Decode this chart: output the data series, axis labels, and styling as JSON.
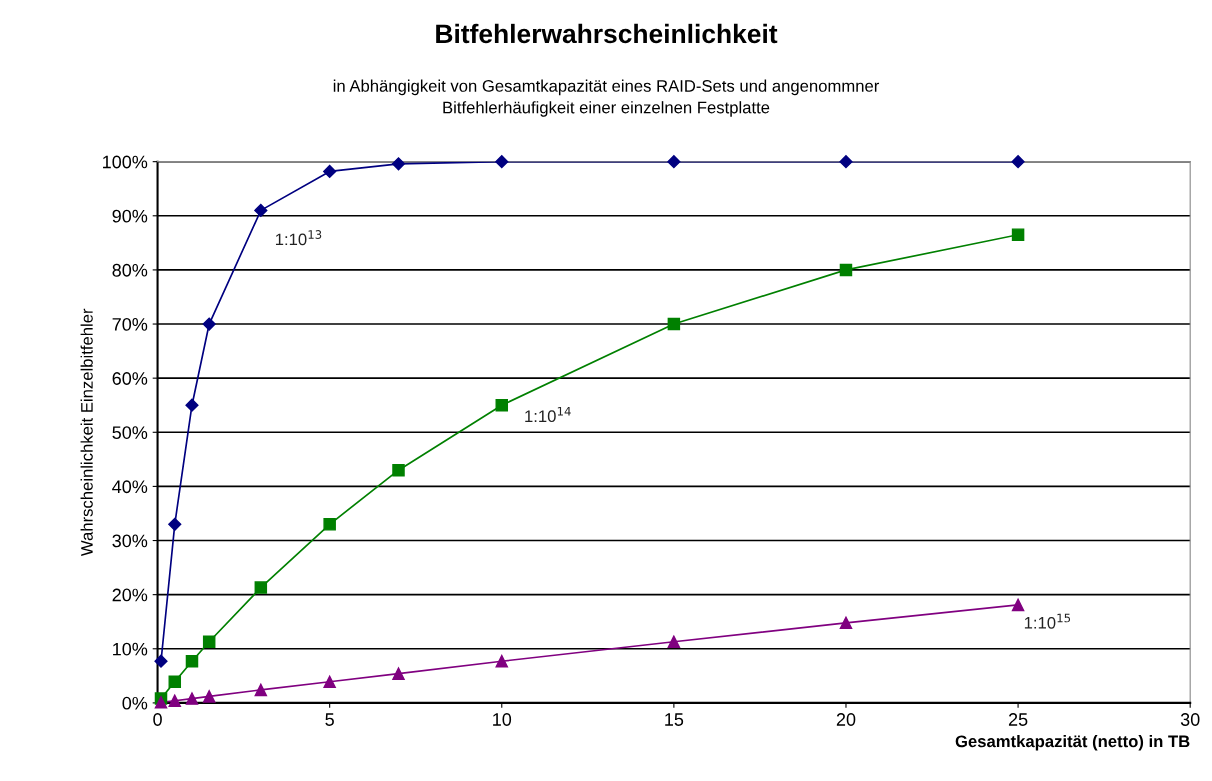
{
  "chart_data": {
    "type": "line",
    "title": "Bitfehlerwahrscheinlichkeit",
    "subtitle": "in Abhängigkeit von Gesamtkapazität eines RAID-Sets und angenommner\nBitfehlerhäufigkeit einer einzelnen Festplatte",
    "xlabel": "Gesamtkapazität (netto) in TB",
    "ylabel": "Wahrscheinlichkeit Einzelbitfehler",
    "x": [
      0.1,
      0.5,
      1,
      1.5,
      3,
      5,
      7,
      10,
      15,
      20,
      25
    ],
    "series": [
      {
        "name": "1:10$^{13}$",
        "color": "#000080",
        "marker": "diamond",
        "values": [
          7.7,
          33,
          55,
          70,
          91,
          98.2,
          99.6,
          100,
          100,
          100,
          100
        ]
      },
      {
        "name": "1:10$^{14}$",
        "color": "#008000",
        "marker": "square",
        "values": [
          0.8,
          3.9,
          7.7,
          11.3,
          21.3,
          33,
          43,
          55,
          70,
          80,
          86.5
        ]
      },
      {
        "name": "1:10$^{15}$",
        "color": "#800080",
        "marker": "triangle",
        "values": [
          0.1,
          0.4,
          0.8,
          1.2,
          2.4,
          3.9,
          5.4,
          7.7,
          11.3,
          14.8,
          18.1
        ]
      }
    ],
    "xlim": [
      0,
      30
    ],
    "xticks": [
      0,
      5,
      10,
      15,
      20,
      25,
      30
    ],
    "ylim": [
      0,
      100
    ],
    "yticks": [
      {
        "value": 0,
        "label": "0%"
      },
      {
        "value": 10,
        "label": "10%"
      },
      {
        "value": 20,
        "label": "20%"
      },
      {
        "value": 30,
        "label": "30%"
      },
      {
        "value": 40,
        "label": "40%"
      },
      {
        "value": 50,
        "label": "50%"
      },
      {
        "value": 60,
        "label": "60%"
      },
      {
        "value": 70,
        "label": "70%"
      },
      {
        "value": 80,
        "label": "80%"
      },
      {
        "value": 90,
        "label": "90%"
      },
      {
        "value": 100,
        "label": "100%"
      }
    ],
    "grid": "y",
    "legend": false
  }
}
